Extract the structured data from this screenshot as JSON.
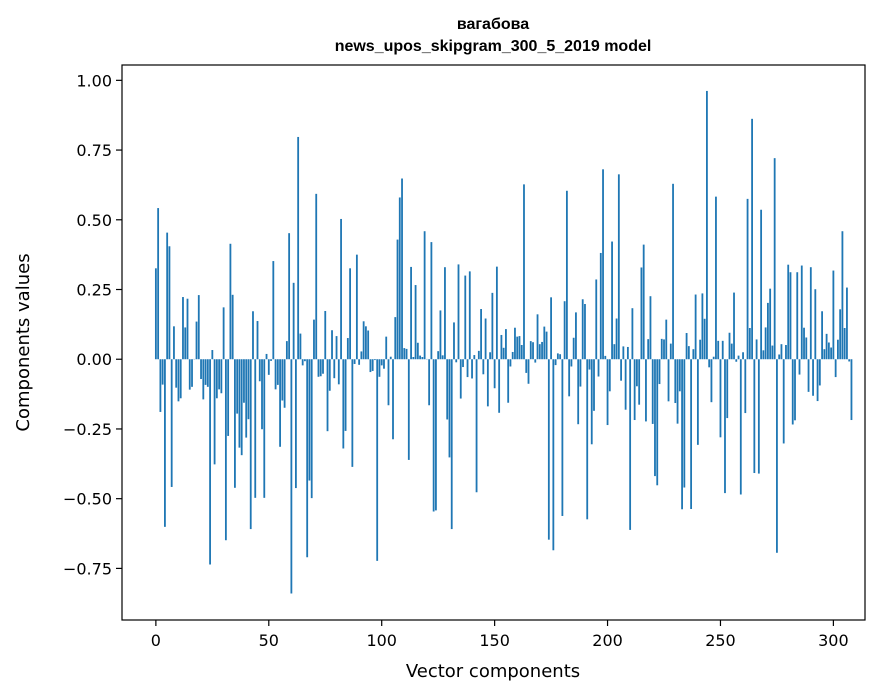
{
  "chart_data": {
    "type": "bar",
    "title": "вагабова",
    "subtitle": "news_upos_skipgram_300_5_2019 model",
    "xlabel": "Vector components",
    "ylabel": "Components values",
    "xlim": [
      -15,
      314
    ],
    "ylim": [
      -0.935,
      1.055
    ],
    "xticks": [
      0,
      50,
      100,
      150,
      200,
      250,
      300
    ],
    "yticks": [
      -0.75,
      -0.5,
      -0.25,
      0.0,
      0.25,
      0.5,
      0.75,
      1.0
    ],
    "ytick_labels": [
      "−0.75",
      "−0.50",
      "−0.25",
      "0.00",
      "0.25",
      "0.50",
      "0.75",
      "1.00"
    ],
    "bar_color": "#1f77b4",
    "values": [
      0.326,
      0.542,
      -0.189,
      -0.091,
      -0.601,
      0.454,
      0.405,
      -0.458,
      0.118,
      -0.102,
      -0.151,
      -0.14,
      0.223,
      0.114,
      0.217,
      -0.109,
      -0.099,
      0.001,
      0.135,
      0.23,
      -0.071,
      -0.144,
      -0.092,
      -0.099,
      -0.736,
      0.033,
      -0.377,
      -0.14,
      -0.108,
      -0.122,
      0.186,
      -0.649,
      -0.275,
      0.414,
      0.231,
      -0.461,
      -0.195,
      -0.317,
      -0.344,
      -0.156,
      -0.281,
      -0.215,
      -0.609,
      0.172,
      -0.497,
      0.137,
      -0.079,
      -0.251,
      -0.497,
      0.019,
      -0.056,
      -0.006,
      0.352,
      -0.108,
      -0.092,
      -0.314,
      -0.148,
      -0.174,
      0.065,
      0.452,
      -0.84,
      0.274,
      -0.462,
      0.797,
      0.092,
      -0.022,
      -0.007,
      -0.71,
      -0.435,
      -0.498,
      0.142,
      0.593,
      -0.063,
      -0.061,
      -0.052,
      0.173,
      -0.258,
      -0.113,
      0.104,
      -0.068,
      0.083,
      -0.09,
      0.503,
      -0.32,
      -0.257,
      0.076,
      0.326,
      -0.386,
      -0.017,
      0.375,
      -0.02,
      0.028,
      0.136,
      0.118,
      0.103,
      -0.046,
      -0.042,
      -0.003,
      -0.723,
      -0.063,
      -0.022,
      -0.034,
      0.081,
      -0.165,
      0.009,
      -0.287,
      0.151,
      0.429,
      0.58,
      0.648,
      0.04,
      0.037,
      -0.361,
      0.331,
      0.008,
      0.266,
      0.059,
      0.013,
      0.008,
      0.459,
      0.001,
      -0.165,
      0.42,
      -0.546,
      -0.542,
      0.029,
      0.175,
      0.014,
      0.33,
      -0.216,
      -0.352,
      -0.609,
      0.132,
      -0.011,
      0.34,
      -0.141,
      -0.028,
      0.3,
      -0.064,
      0.315,
      -0.069,
      0.015,
      -0.477,
      0.03,
      0.18,
      -0.054,
      0.146,
      -0.169,
      0.025,
      0.238,
      -0.104,
      0.332,
      -0.192,
      0.087,
      0.041,
      0.108,
      -0.156,
      -0.026,
      0.026,
      0.113,
      0.081,
      0.083,
      0.051,
      0.627,
      -0.049,
      -0.088,
      0.065,
      0.061,
      -0.012,
      0.161,
      0.054,
      0.062,
      0.117,
      0.099,
      -0.647,
      0.222,
      -0.685,
      -0.021,
      0.021,
      0.018,
      -0.562,
      0.208,
      0.604,
      -0.133,
      -0.026,
      0.077,
      0.168,
      -0.233,
      -0.098,
      0.215,
      0.198,
      -0.574,
      -0.037,
      -0.305,
      -0.185,
      0.286,
      -0.062,
      0.381,
      0.681,
      0.012,
      -0.236,
      -0.115,
      0.422,
      0.054,
      0.146,
      0.663,
      -0.077,
      0.046,
      -0.181,
      0.044,
      -0.612,
      0.183,
      -0.218,
      -0.097,
      -0.163,
      0.329,
      0.411,
      -0.223,
      0.072,
      0.226,
      -0.232,
      -0.419,
      -0.452,
      -0.089,
      0.073,
      0.071,
      0.142,
      -0.151,
      0.056,
      0.629,
      -0.157,
      -0.231,
      -0.115,
      -0.538,
      -0.46,
      0.094,
      0.047,
      -0.537,
      0.036,
      0.232,
      -0.307,
      0.07,
      0.236,
      0.145,
      0.962,
      -0.029,
      -0.154,
      0.009,
      0.583,
      0.066,
      -0.28,
      0.066,
      -0.48,
      -0.211,
      0.095,
      0.056,
      0.239,
      -0.009,
      0.013,
      -0.485,
      0.025,
      -0.193,
      0.575,
      0.112,
      0.862,
      -0.408,
      0.071,
      -0.41,
      0.536,
      0.032,
      0.114,
      0.202,
      0.253,
      0.049,
      0.721,
      -0.694,
      0.017,
      0.054,
      -0.302,
      0.051,
      0.339,
      0.312,
      -0.234,
      -0.219,
      0.312,
      -0.055,
      0.336,
      0.113,
      0.078,
      -0.117,
      0.33,
      -0.131,
      0.251,
      -0.15,
      -0.094,
      0.172,
      0.036,
      0.091,
      0.06,
      0.042,
      0.318,
      -0.064,
      0.07,
      0.179,
      0.459,
      0.112,
      0.257,
      -0.008,
      -0.218
    ]
  }
}
